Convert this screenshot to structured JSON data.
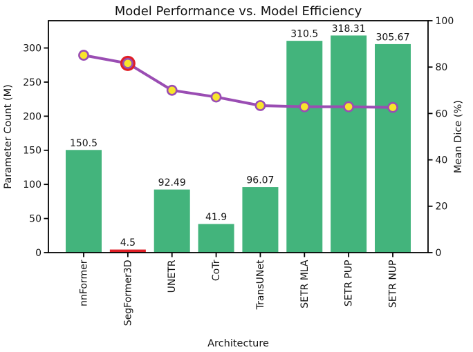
{
  "chart_data": {
    "type": "combo_bar_line",
    "title": "Model Performance vs. Model Efficiency",
    "xlabel": "Architecture",
    "ylabel_left": "Parameter Count (M)",
    "ylabel_right": "Mean Dice (%)",
    "categories": [
      "nnFormer",
      "SegFormer3D",
      "UNETR",
      "CoTr",
      "TransUNet",
      "SETR MLA",
      "SETR PUP",
      "SETR NUP"
    ],
    "highlight_index": 1,
    "series": [
      {
        "name": "Parameter Count (M)",
        "type": "bar",
        "axis": "left",
        "values": [
          150.5,
          4.5,
          92.49,
          41.9,
          96.07,
          310.5,
          318.31,
          305.67
        ],
        "data_labels": [
          "150.5",
          "4.5",
          "92.49",
          "41.9",
          "96.07",
          "310.5",
          "318.31",
          "305.67"
        ],
        "color": "#43b47c",
        "highlight_color": "#e01f26"
      },
      {
        "name": "Mean Dice (%)",
        "type": "line",
        "axis": "right",
        "values_estimated_pct": [
          85.1,
          81.6,
          70.0,
          67.1,
          63.4,
          62.9,
          62.9,
          62.6
        ],
        "color": "#9a4db3",
        "marker_color": "#f8e52b",
        "marker_edge_color": "#9a4db3",
        "highlight_ring_color": "#e01f26"
      }
    ],
    "axes": {
      "left": {
        "ticks": [
          0,
          50,
          100,
          150,
          200,
          250,
          300
        ],
        "range": [
          0,
          340
        ]
      },
      "right": {
        "ticks": [
          0,
          20,
          40,
          60,
          80,
          100
        ],
        "range": [
          0,
          100
        ]
      },
      "x": {
        "tick_rotation_deg": 90
      }
    },
    "grid": false,
    "legend": null,
    "colors": {
      "text": "#111111",
      "spine": "#000000",
      "background": "#ffffff"
    }
  }
}
